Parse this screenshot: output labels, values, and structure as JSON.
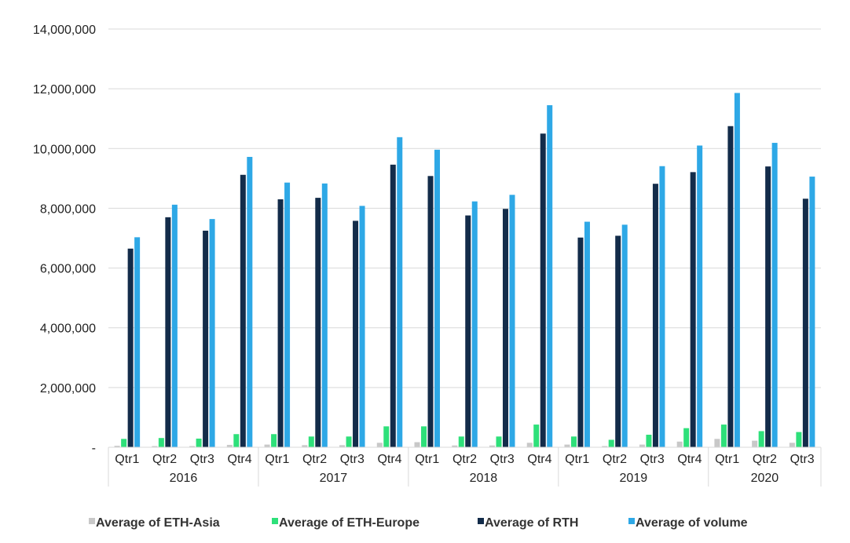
{
  "chart_data": {
    "type": "bar",
    "years": [
      "2016",
      "2017",
      "2018",
      "2019",
      "2020"
    ],
    "quarters": [
      "Qtr1",
      "Qtr2",
      "Qtr3",
      "Qtr4"
    ],
    "categories": [
      {
        "year": "2016",
        "quarter": "Qtr1"
      },
      {
        "year": "2016",
        "quarter": "Qtr2"
      },
      {
        "year": "2016",
        "quarter": "Qtr3"
      },
      {
        "year": "2016",
        "quarter": "Qtr4"
      },
      {
        "year": "2017",
        "quarter": "Qtr1"
      },
      {
        "year": "2017",
        "quarter": "Qtr2"
      },
      {
        "year": "2017",
        "quarter": "Qtr3"
      },
      {
        "year": "2017",
        "quarter": "Qtr4"
      },
      {
        "year": "2018",
        "quarter": "Qtr1"
      },
      {
        "year": "2018",
        "quarter": "Qtr2"
      },
      {
        "year": "2018",
        "quarter": "Qtr3"
      },
      {
        "year": "2018",
        "quarter": "Qtr4"
      },
      {
        "year": "2019",
        "quarter": "Qtr1"
      },
      {
        "year": "2019",
        "quarter": "Qtr2"
      },
      {
        "year": "2019",
        "quarter": "Qtr3"
      },
      {
        "year": "2019",
        "quarter": "Qtr4"
      },
      {
        "year": "2020",
        "quarter": "Qtr1"
      },
      {
        "year": "2020",
        "quarter": "Qtr2"
      },
      {
        "year": "2020",
        "quarter": "Qtr3"
      }
    ],
    "series": [
      {
        "name": "Average of ETH-Asia",
        "color": "#c8c8c8",
        "values": [
          50000,
          40000,
          40000,
          80000,
          90000,
          70000,
          70000,
          150000,
          170000,
          60000,
          60000,
          150000,
          90000,
          40000,
          90000,
          190000,
          280000,
          220000,
          150000
        ]
      },
      {
        "name": "Average of ETH-Europe",
        "color": "#2ee07a",
        "values": [
          280000,
          310000,
          290000,
          440000,
          440000,
          360000,
          360000,
          700000,
          700000,
          360000,
          360000,
          760000,
          360000,
          250000,
          420000,
          640000,
          760000,
          540000,
          510000
        ]
      },
      {
        "name": "Average of RTH",
        "color": "#132c4a",
        "values": [
          6650000,
          7700000,
          7250000,
          9120000,
          8300000,
          8350000,
          7580000,
          9460000,
          9080000,
          7760000,
          7980000,
          10500000,
          7020000,
          7080000,
          8820000,
          9210000,
          10750000,
          9400000,
          8320000
        ]
      },
      {
        "name": "Average of volume",
        "color": "#2ea8e6",
        "values": [
          7030000,
          8120000,
          7640000,
          9720000,
          8860000,
          8830000,
          8080000,
          10380000,
          9960000,
          8230000,
          8450000,
          11450000,
          7550000,
          7450000,
          9410000,
          10100000,
          11860000,
          10190000,
          9060000
        ]
      }
    ],
    "ylim": [
      0,
      14000000
    ],
    "yticks": [
      0,
      2000000,
      4000000,
      6000000,
      8000000,
      10000000,
      12000000,
      14000000
    ],
    "ytick_labels": [
      "-",
      "2,000,000",
      "4,000,000",
      "6,000,000",
      "8,000,000",
      "10,000,000",
      "12,000,000",
      "14,000,000"
    ],
    "grid": true,
    "legend_position": "bottom",
    "title": "",
    "xlabel": "",
    "ylabel": ""
  }
}
